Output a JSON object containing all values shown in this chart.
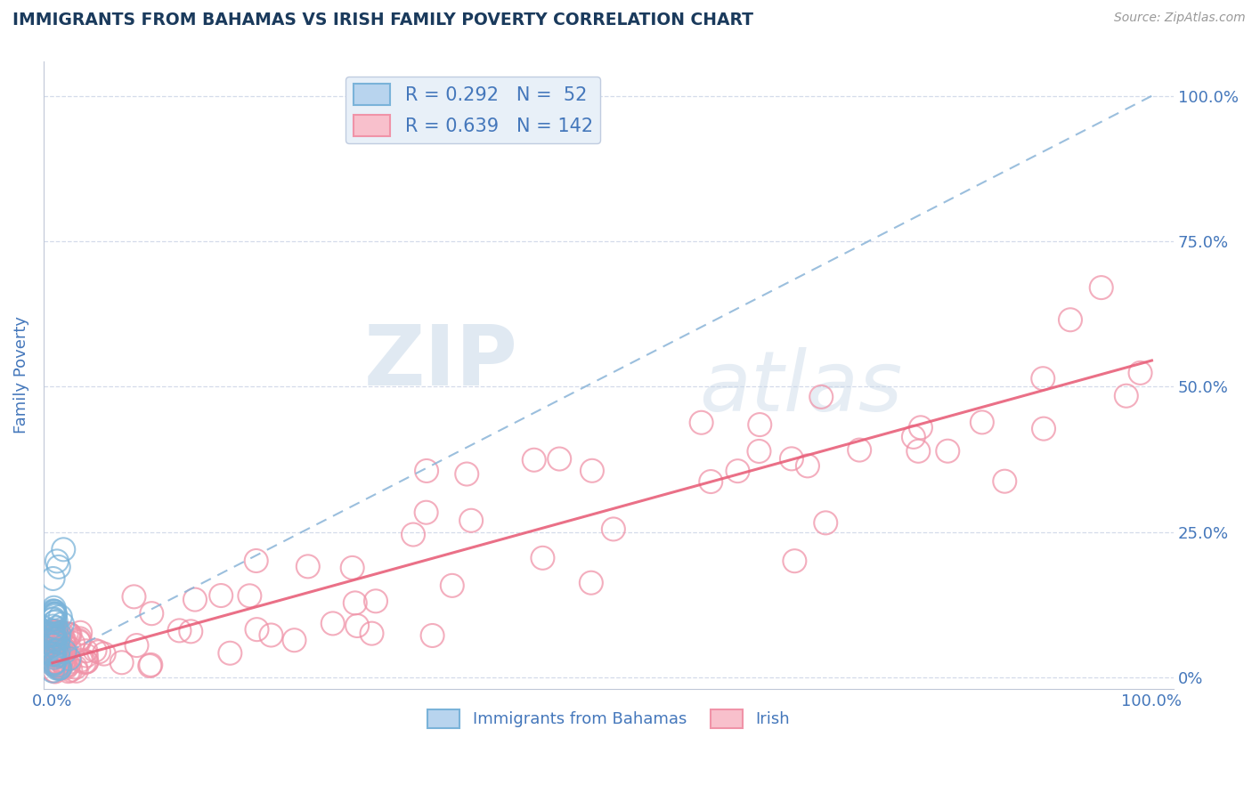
{
  "title": "IMMIGRANTS FROM BAHAMAS VS IRISH FAMILY POVERTY CORRELATION CHART",
  "source": "Source: ZipAtlas.com",
  "ylabel": "Family Poverty",
  "yticks": [
    0.0,
    0.25,
    0.5,
    0.75,
    1.0
  ],
  "ytick_labels": [
    "0%",
    "25.0%",
    "50.0%",
    "75.0%",
    "100.0%"
  ],
  "blue_color": "#7ab3d9",
  "pink_color": "#f093a8",
  "trend_blue_color": "#8ab4d8",
  "trend_pink_color": "#e8607a",
  "watermark_zip": "ZIP",
  "watermark_atlas": "atlas",
  "background_color": "#ffffff",
  "grid_color": "#d0d8e8",
  "title_color": "#1a3a5c",
  "axis_label_color": "#4477bb",
  "legend_box_color": "#e8f0f8",
  "legend_edge_color": "#c0cce0"
}
